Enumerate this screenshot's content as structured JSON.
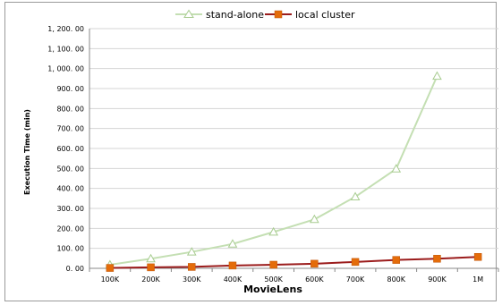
{
  "chart_data": {
    "type": "line",
    "title": "",
    "xlabel": "MovieLens",
    "ylabel": "Execution Time (min)",
    "categories": [
      "100K",
      "200K",
      "300K",
      "400K",
      "500K",
      "600K",
      "700K",
      "800K",
      "900K",
      "1M"
    ],
    "ylim": [
      0,
      1200
    ],
    "yticks": [
      "0. 00",
      "100. 00",
      "200. 00",
      "300. 00",
      "400. 00",
      "500. 00",
      "600. 00",
      "700. 00",
      "800. 00",
      "900. 00",
      "1, 000. 00",
      "1, 100. 00",
      "1, 200. 00"
    ],
    "grid": true,
    "legend_position": "top",
    "series": [
      {
        "name": "stand-alone",
        "color": "#c4dfb3",
        "marker": "triangle",
        "values": [
          18,
          48,
          82,
          122,
          182,
          245,
          358,
          498,
          962,
          null
        ]
      },
      {
        "name": "local cluster",
        "color": "#e46c0a",
        "line_color": "#9b1c1c",
        "marker": "square",
        "values": [
          2,
          5,
          7,
          14,
          18,
          23,
          32,
          42,
          48,
          57
        ]
      }
    ]
  }
}
